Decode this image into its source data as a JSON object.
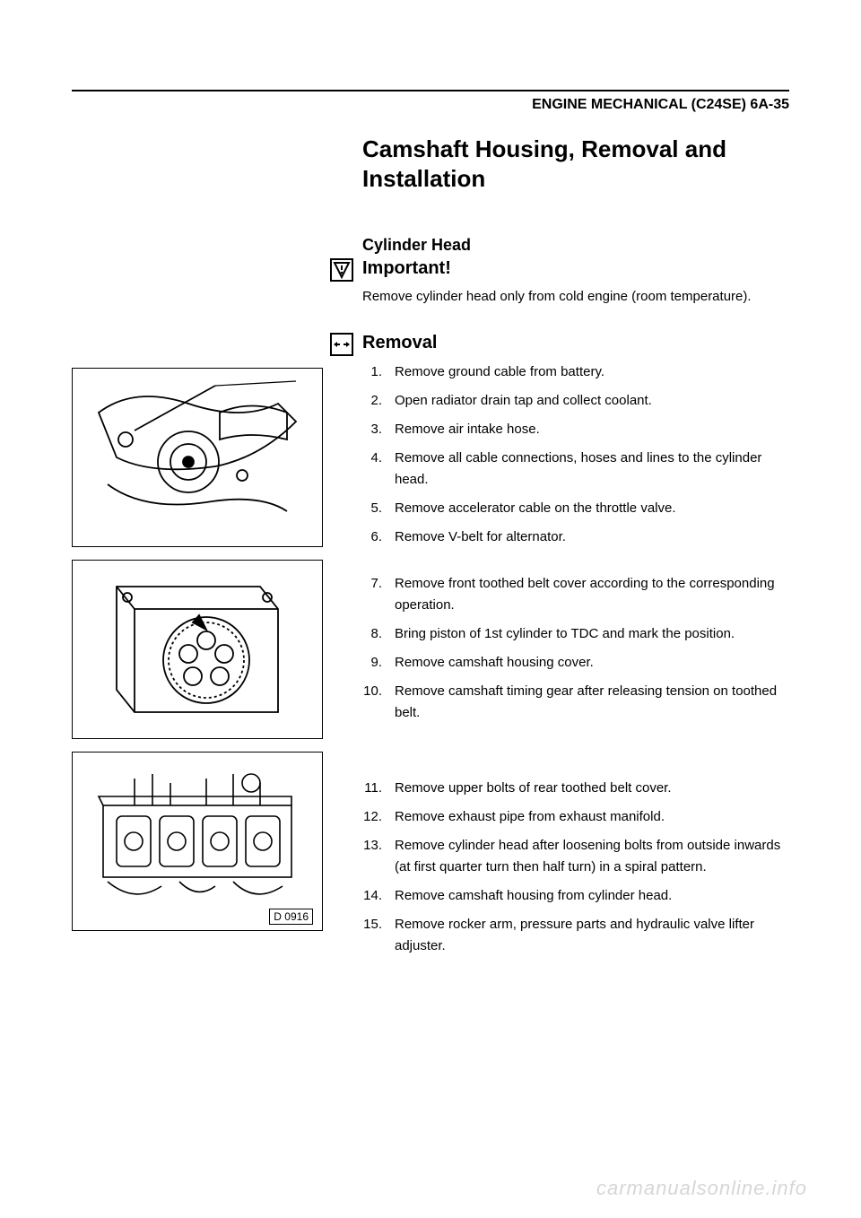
{
  "header": {
    "section_label": "ENGINE MECHANICAL (C24SE) 6A-35"
  },
  "title": "Camshaft Housing, Removal and Installation",
  "cylinder_head": {
    "heading": "Cylinder Head",
    "important_label": "Important!",
    "note": "Remove cylinder head only from cold engine (room temperature)."
  },
  "removal": {
    "heading": "Removal",
    "steps_block1": [
      {
        "n": "1.",
        "t": "Remove ground cable from battery."
      },
      {
        "n": "2.",
        "t": "Open radiator drain tap and collect coolant."
      },
      {
        "n": "3.",
        "t": "Remove air intake hose."
      },
      {
        "n": "4.",
        "t": "Remove all cable connections, hoses and lines to the cylinder head."
      },
      {
        "n": "5.",
        "t": "Remove accelerator cable on the throttle valve."
      },
      {
        "n": "6.",
        "t": "Remove V-belt for alternator."
      }
    ],
    "steps_block2": [
      {
        "n": "7.",
        "t": "Remove front toothed belt cover according to the corresponding operation."
      },
      {
        "n": "8.",
        "t": "Bring piston of 1st cylinder to TDC and mark the position."
      },
      {
        "n": "9.",
        "t": "Remove camshaft housing cover."
      },
      {
        "n": "10.",
        "t": "Remove camshaft timing gear after releasing tension on toothed belt."
      }
    ],
    "steps_block3": [
      {
        "n": "11.",
        "t": "Remove upper bolts of rear toothed belt cover."
      },
      {
        "n": "12.",
        "t": "Remove exhaust pipe from exhaust manifold."
      },
      {
        "n": "13.",
        "t": "Remove cylinder head after loosening bolts from outside inwards (at first quarter turn then half turn) in a spiral pattern."
      },
      {
        "n": "14.",
        "t": "Remove camshaft housing from cylinder head."
      },
      {
        "n": "15.",
        "t": "Remove rocker arm, pressure parts and hydraulic valve lifter adjuster."
      }
    ]
  },
  "figures": {
    "fig3_label": "D 0916"
  },
  "watermark": "carmanualsonline.info"
}
